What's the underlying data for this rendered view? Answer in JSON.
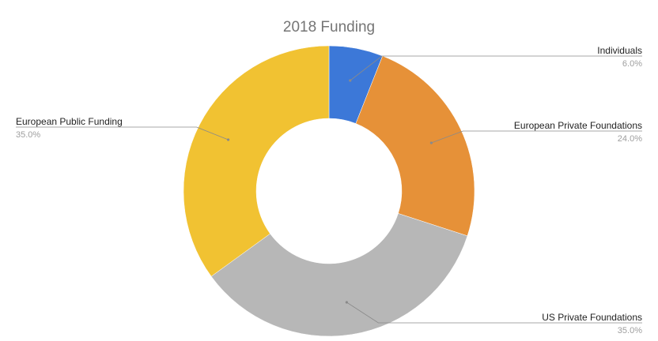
{
  "chart_data": {
    "type": "pie",
    "donut": true,
    "title": "2018 Funding",
    "legend": "labels beside slices with leader lines",
    "slices": [
      {
        "label": "Individuals",
        "value": 6.0,
        "value_label": "6.0%",
        "color": "#3c78d8"
      },
      {
        "label": "European Private Foundations",
        "value": 24.0,
        "value_label": "24.0%",
        "color": "#e69138"
      },
      {
        "label": "US Private Foundations",
        "value": 35.0,
        "value_label": "35.0%",
        "color": "#b7b7b7"
      },
      {
        "label": "European Public Funding",
        "value": 35.0,
        "value_label": "35.0%",
        "color": "#f1c232"
      }
    ]
  }
}
